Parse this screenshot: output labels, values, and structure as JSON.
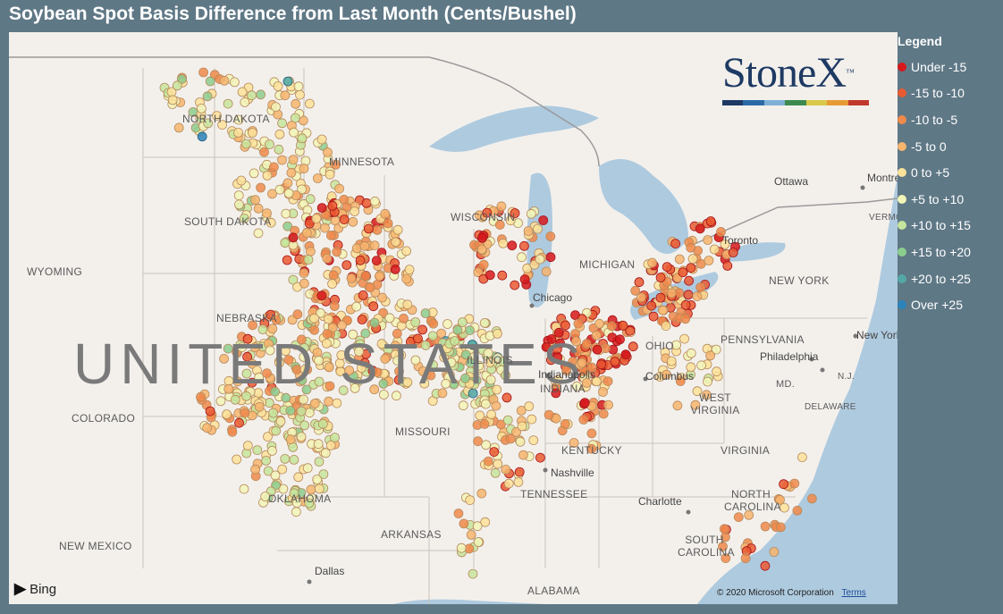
{
  "title": "Soybean Spot Basis Difference from Last Month (Cents/Bushel)",
  "legend": {
    "title": "Legend",
    "items": [
      {
        "label": "Under -15",
        "color": "#d7191c"
      },
      {
        "label": "-15 to -10",
        "color": "#ea5a32"
      },
      {
        "label": "-10 to -5",
        "color": "#f08a4b"
      },
      {
        "label": "-5 to 0",
        "color": "#f7b56e"
      },
      {
        "label": "0 to +5",
        "color": "#fbe29a"
      },
      {
        "label": "+5 to +10",
        "color": "#f2f5b8"
      },
      {
        "label": "+10 to +15",
        "color": "#c6e59c"
      },
      {
        "label": "+15 to +20",
        "color": "#8ccd8e"
      },
      {
        "label": "+20 to +25",
        "color": "#52a8a6"
      },
      {
        "label": "Over +25",
        "color": "#2b83ba"
      }
    ]
  },
  "map": {
    "country_label": "UNITED STATES",
    "state_labels": [
      "NORTH DAKOTA",
      "MINNESOTA",
      "SOUTH DAKOTA",
      "WYOMING",
      "NEBRASKA",
      "WISCONSIN",
      "MICHIGAN",
      "COLORADO",
      "MISSOURI",
      "KENTUCKY",
      "TENNESSEE",
      "OKLAHOMA",
      "ARKANSAS",
      "NEW MEXICO",
      "ALABAMA",
      "NEW YORK",
      "PENNSYLVANIA",
      "WEST VIRGINIA",
      "VIRGINIA",
      "NORTH CAROLINA",
      "SOUTH CAROLINA",
      "DELAWARE",
      "MD.",
      "N.J.",
      "VERMONT",
      "INDIANA",
      "OHIO",
      "ILLINOIS"
    ],
    "city_labels": [
      "Chicago",
      "Columbus",
      "Nashville",
      "Charlotte",
      "Dallas",
      "Philadelphia",
      "New York",
      "Ottawa",
      "Toronto",
      "Montreal",
      "Indianapolis"
    ],
    "copyright": "© 2020 Microsoft Corporation",
    "terms": "Terms",
    "provider": "Bing"
  },
  "logo": {
    "text": "StoneX",
    "tm": "™",
    "stripe_colors": [
      "#1e3a63",
      "#2c6aa6",
      "#7fb0d6",
      "#3d8a4e",
      "#d9c84a",
      "#e79a34",
      "#c0392b"
    ]
  }
}
